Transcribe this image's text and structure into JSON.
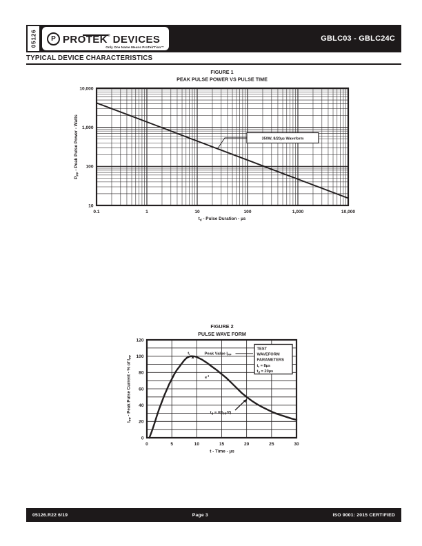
{
  "colors": {
    "ink": "#221e1f",
    "paper": "#ffffff"
  },
  "header": {
    "doc_number": "05126",
    "logo": {
      "mark_letter": "P",
      "brand_pro": "PRO",
      "brand_tek": "TEK",
      "registered_mark": "®",
      "brand_devices": "DEVICES",
      "tagline": "Only One Name Means ProTek'Tion™"
    },
    "part_range": "GBLC03 - GBLC24C"
  },
  "section_title": "TYPICAL DEVICE CHARACTERISTICS",
  "footer": {
    "left": "05126.R22 6/19",
    "center": "Page 3",
    "right": "ISO 9001: 2015 CERTIFIED"
  },
  "chart_data": [
    {
      "id": "figure-1",
      "type": "line",
      "title": "FIGURE 1",
      "subtitle": "PEAK PULSE POWER VS PULSE TIME",
      "xlabel": "td - Pulse Duration - µs",
      "xlabel_parts": [
        [
          "t",
          0
        ],
        [
          "d",
          1
        ],
        [
          " - Pulse Duration - µs",
          0
        ]
      ],
      "ylabel": "Ppp - Peak Pulse Power - Watts",
      "ylabel_parts": [
        [
          "P",
          0
        ],
        [
          "PP",
          1
        ],
        [
          " - Peak Pulse Power - Watts",
          0
        ]
      ],
      "x_scale": "log",
      "y_scale": "log",
      "xlim": [
        0.1,
        10000
      ],
      "ylim": [
        10,
        10000
      ],
      "grid": "log-log, minor decades shown",
      "x_ticks": [
        {
          "v": 0.1,
          "label": "0.1"
        },
        {
          "v": 1,
          "label": "1"
        },
        {
          "v": 10,
          "label": "10"
        },
        {
          "v": 100,
          "label": "100"
        },
        {
          "v": 1000,
          "label": "1,000"
        },
        {
          "v": 10000,
          "label": "10,000"
        }
      ],
      "y_ticks": [
        {
          "v": 10,
          "label": "10"
        },
        {
          "v": 100,
          "label": "100"
        },
        {
          "v": 1000,
          "label": "1,000"
        },
        {
          "v": 10000,
          "label": "10,000"
        }
      ],
      "series": [
        {
          "name": "peak-pulse-power",
          "x": [
            0.1,
            1,
            10,
            100,
            1000,
            10000
          ],
          "y": [
            4200,
            1370,
            445,
            145,
            47,
            15.3
          ]
        }
      ],
      "annotation": {
        "label": "350W, 8/20µs Waveform",
        "points_to_t_us": 24
      }
    },
    {
      "id": "figure-2",
      "type": "line",
      "title": "FIGURE 2",
      "subtitle": "PULSE WAVE FORM",
      "xlabel": "t - Time - µs",
      "xlabel_parts": [
        [
          "t - Time - µs",
          0
        ]
      ],
      "ylabel": "Ipp - Peak Pulse Current - % of Ipp",
      "ylabel_parts": [
        [
          "I",
          0
        ],
        [
          "PP",
          1
        ],
        [
          " - Peak Pulse Current - % of I",
          0
        ],
        [
          "PP",
          1
        ]
      ],
      "xlim": [
        0,
        30
      ],
      "ylim": [
        0,
        120
      ],
      "x_ticks": [
        0,
        5,
        10,
        15,
        20,
        25,
        30
      ],
      "y_ticks": [
        0,
        20,
        40,
        60,
        80,
        100,
        120
      ],
      "y_grid_step": 10,
      "x_grid_step": 5,
      "series": [
        {
          "name": "pulse-waveform",
          "x": [
            0.5,
            1,
            1.5,
            2,
            2.5,
            3,
            3.5,
            4,
            4.5,
            5,
            5.5,
            6,
            6.5,
            7,
            7.5,
            8,
            8.5,
            9,
            9.5,
            10,
            11,
            12,
            13,
            14,
            15,
            16,
            17,
            18,
            19,
            20,
            21,
            22,
            23,
            24,
            25,
            26,
            27,
            28,
            29,
            30
          ],
          "y": [
            0,
            8,
            17,
            27,
            36,
            44,
            52,
            59,
            66,
            72,
            78,
            83,
            87,
            91,
            95,
            98,
            99.5,
            100,
            99.8,
            99,
            96,
            92,
            87.5,
            83,
            78,
            73,
            67,
            61,
            55,
            50,
            45.5,
            41.5,
            38,
            35,
            32,
            29.5,
            27.5,
            25.5,
            23.5,
            22
          ]
        }
      ],
      "annotations": {
        "rise_time": {
          "parts": [
            [
              "t",
              0
            ],
            [
              "r",
              1
            ]
          ]
        },
        "peak_value": {
          "parts": [
            [
              "Peak Value I",
              0
            ],
            [
              "PP",
              1
            ]
          ]
        },
        "decay": {
          "parts": [
            [
              "e",
              0
            ],
            [
              "-t",
              2
            ]
          ]
        },
        "half_value": {
          "parts": [
            [
              "t",
              0
            ],
            [
              "d",
              1
            ],
            [
              " = t/(I",
              0
            ],
            [
              "PP",
              1
            ],
            [
              "/2)",
              0
            ]
          ]
        },
        "test_box": {
          "lines": [
            [
              [
                "TEST",
                0
              ]
            ],
            [
              [
                "WAVEFORM",
                0
              ]
            ],
            [
              [
                "PARAMETERS",
                0
              ]
            ],
            [
              [
                "t",
                0
              ],
              [
                "r",
                1
              ],
              [
                " = 8µs",
                0
              ]
            ],
            [
              [
                "t",
                0
              ],
              [
                "d",
                1
              ],
              [
                " = 20µs",
                0
              ]
            ]
          ]
        }
      }
    }
  ]
}
